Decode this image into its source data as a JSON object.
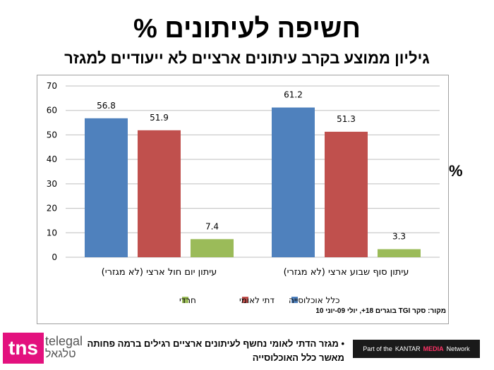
{
  "title": "% חשיפה לעיתונים",
  "subtitle": "גיליון ממוצע בקרב עיתונים ארציים לא ייעודיים למגזר",
  "side_label": "%",
  "source": "מקור: סקר TGI בוגרים 18+, יולי 09-יוני 10",
  "bullet": "מגזר הדתי לאומי נחשף לעיתונים ארציים רגילים ברמה פחותה מאשר כלל האוכלוסייה",
  "logos": {
    "tns": "tns",
    "telegal": "telegal",
    "telegal_he": "טלגאל",
    "network_prefix": "Part of the",
    "kantar": "KANTAR",
    "media": "MEDIA",
    "network_suffix": "Network"
  },
  "chart_data": {
    "type": "bar",
    "categories": [
      "עיתון יום חול ארצי (לא מגזרי)",
      "עיתון סוף שבוע ארצי (לא מגזרי)"
    ],
    "series": [
      {
        "name": "כלל אוכלוסייה",
        "color": "#4f81bd",
        "values": [
          56.8,
          61.2
        ]
      },
      {
        "name": "דתי לאומי",
        "color": "#c0504d",
        "values": [
          51.9,
          51.3
        ]
      },
      {
        "name": "חרדי",
        "color": "#9bbb59",
        "values": [
          7.4,
          3.3
        ]
      }
    ],
    "ylim": [
      0,
      70
    ],
    "yticks": [
      0,
      10,
      20,
      30,
      40,
      50,
      60,
      70
    ],
    "grid": true,
    "legend": "bottom"
  }
}
